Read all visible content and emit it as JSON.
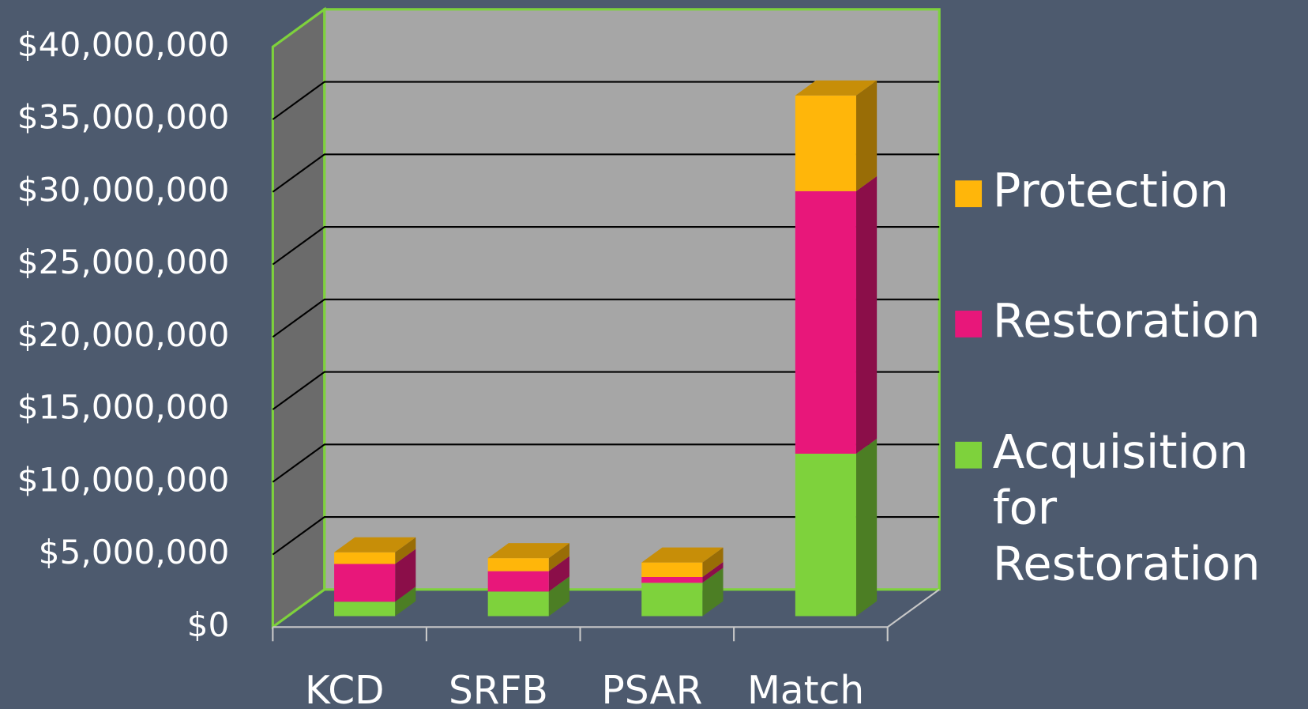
{
  "chart_data": {
    "type": "bar3d_stacked",
    "categories": [
      "KCD",
      "SRFB",
      "PSAR",
      "Match"
    ],
    "series": [
      {
        "name": "Acquisition for Restoration",
        "color": "#7ed23c",
        "values": [
          1000000,
          1700000,
          2300000,
          11200000
        ]
      },
      {
        "name": "Restoration",
        "color": "#e8177a",
        "values": [
          2600000,
          1400000,
          400000,
          18100000
        ]
      },
      {
        "name": "Protection",
        "color": "#ffb60a",
        "values": [
          800000,
          900000,
          1000000,
          6600000
        ]
      }
    ],
    "ylim": [
      0,
      40000000
    ],
    "yticks": [
      {
        "value": 0,
        "label": "$0"
      },
      {
        "value": 5000000,
        "label": "$5,000,000"
      },
      {
        "value": 10000000,
        "label": "$10,000,000"
      },
      {
        "value": 15000000,
        "label": "$15,000,000"
      },
      {
        "value": 20000000,
        "label": "$20,000,000"
      },
      {
        "value": 25000000,
        "label": "$25,000,000"
      },
      {
        "value": 30000000,
        "label": "$30,000,000"
      },
      {
        "value": 35000000,
        "label": "$35,000,000"
      },
      {
        "value": 40000000,
        "label": "$40,000,000"
      }
    ],
    "grid": true,
    "legend": "right"
  }
}
